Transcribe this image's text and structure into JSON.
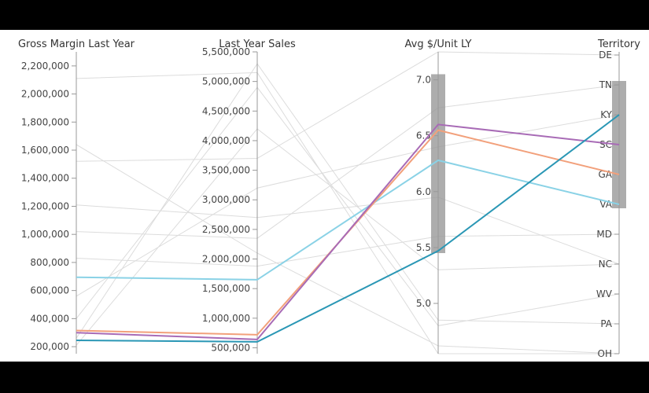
{
  "chart_data": {
    "type": "parallel-coordinates",
    "axes": [
      {
        "name": "Gross Margin Last Year",
        "kind": "linear",
        "domain": [
          150000,
          2300000
        ],
        "ticks": [
          {
            "v": 200000,
            "label": "200,000"
          },
          {
            "v": 400000,
            "label": "400,000"
          },
          {
            "v": 600000,
            "label": "600,000"
          },
          {
            "v": 800000,
            "label": "800,000"
          },
          {
            "v": 1000000,
            "label": "1,000,000"
          },
          {
            "v": 1200000,
            "label": "1,200,000"
          },
          {
            "v": 1400000,
            "label": "1,400,000"
          },
          {
            "v": 1600000,
            "label": "1,600,000"
          },
          {
            "v": 1800000,
            "label": "1,800,000"
          },
          {
            "v": 2000000,
            "label": "2,000,000"
          },
          {
            "v": 2200000,
            "label": "2,200,000"
          }
        ]
      },
      {
        "name": "Last Year Sales",
        "kind": "linear",
        "domain": [
          400000,
          5500000
        ],
        "ticks": [
          {
            "v": 500000,
            "label": "500,000"
          },
          {
            "v": 1000000,
            "label": "1,000,000"
          },
          {
            "v": 1500000,
            "label": "1,500,000"
          },
          {
            "v": 2000000,
            "label": "2,000,000"
          },
          {
            "v": 2500000,
            "label": "2,500,000"
          },
          {
            "v": 3000000,
            "label": "3,000,000"
          },
          {
            "v": 3500000,
            "label": "3,500,000"
          },
          {
            "v": 4000000,
            "label": "4,000,000"
          },
          {
            "v": 4500000,
            "label": "4,500,000"
          },
          {
            "v": 5000000,
            "label": "5,000,000"
          },
          {
            "v": 5500000,
            "label": "5,500,000"
          }
        ]
      },
      {
        "name": "Avg $/Unit LY",
        "kind": "linear",
        "domain": [
          4.55,
          7.25
        ],
        "ticks": [
          {
            "v": 5.0,
            "label": "5.0"
          },
          {
            "v": 5.5,
            "label": "5.5"
          },
          {
            "v": 6.0,
            "label": "6.0"
          },
          {
            "v": 6.5,
            "label": "6.5"
          },
          {
            "v": 7.0,
            "label": "7.0"
          }
        ],
        "brush": [
          5.45,
          7.05
        ]
      },
      {
        "name": "Territory",
        "kind": "categorical",
        "categories": [
          "DE",
          "TN",
          "KY",
          "SC",
          "GA",
          "VA",
          "MD",
          "NC",
          "WV",
          "PA",
          "OH"
        ],
        "brush": [
          "TN",
          "VA"
        ]
      }
    ],
    "highlighted_lines": [
      {
        "values": [
          695000,
          1650000,
          6.28,
          "VA"
        ],
        "color": "#8ad2e6"
      },
      {
        "values": [
          315000,
          720000,
          6.55,
          "GA"
        ],
        "color": "#f2a07b"
      },
      {
        "values": [
          300000,
          640000,
          6.6,
          "SC"
        ],
        "color": "#a86bb6"
      },
      {
        "values": [
          245000,
          600000,
          5.47,
          "KY"
        ],
        "color": "#2a97b5"
      }
    ],
    "background_lines": [
      [
        2110000,
        5150000,
        4.55,
        "OH"
      ],
      [
        1520000,
        3700000,
        7.25,
        "DE"
      ],
      [
        1020000,
        2350000,
        6.75,
        "TN"
      ],
      [
        830000,
        1880000,
        5.6,
        "MD"
      ],
      [
        260000,
        5300000,
        4.85,
        "PA"
      ],
      [
        1210000,
        2700000,
        5.95,
        "NC"
      ],
      [
        400000,
        4900000,
        4.8,
        "WV"
      ],
      [
        560000,
        3200000,
        6.4,
        "KY"
      ],
      [
        210000,
        4200000,
        5.3,
        "NC"
      ],
      [
        1640000,
        2100000,
        4.62,
        "OH"
      ]
    ]
  }
}
